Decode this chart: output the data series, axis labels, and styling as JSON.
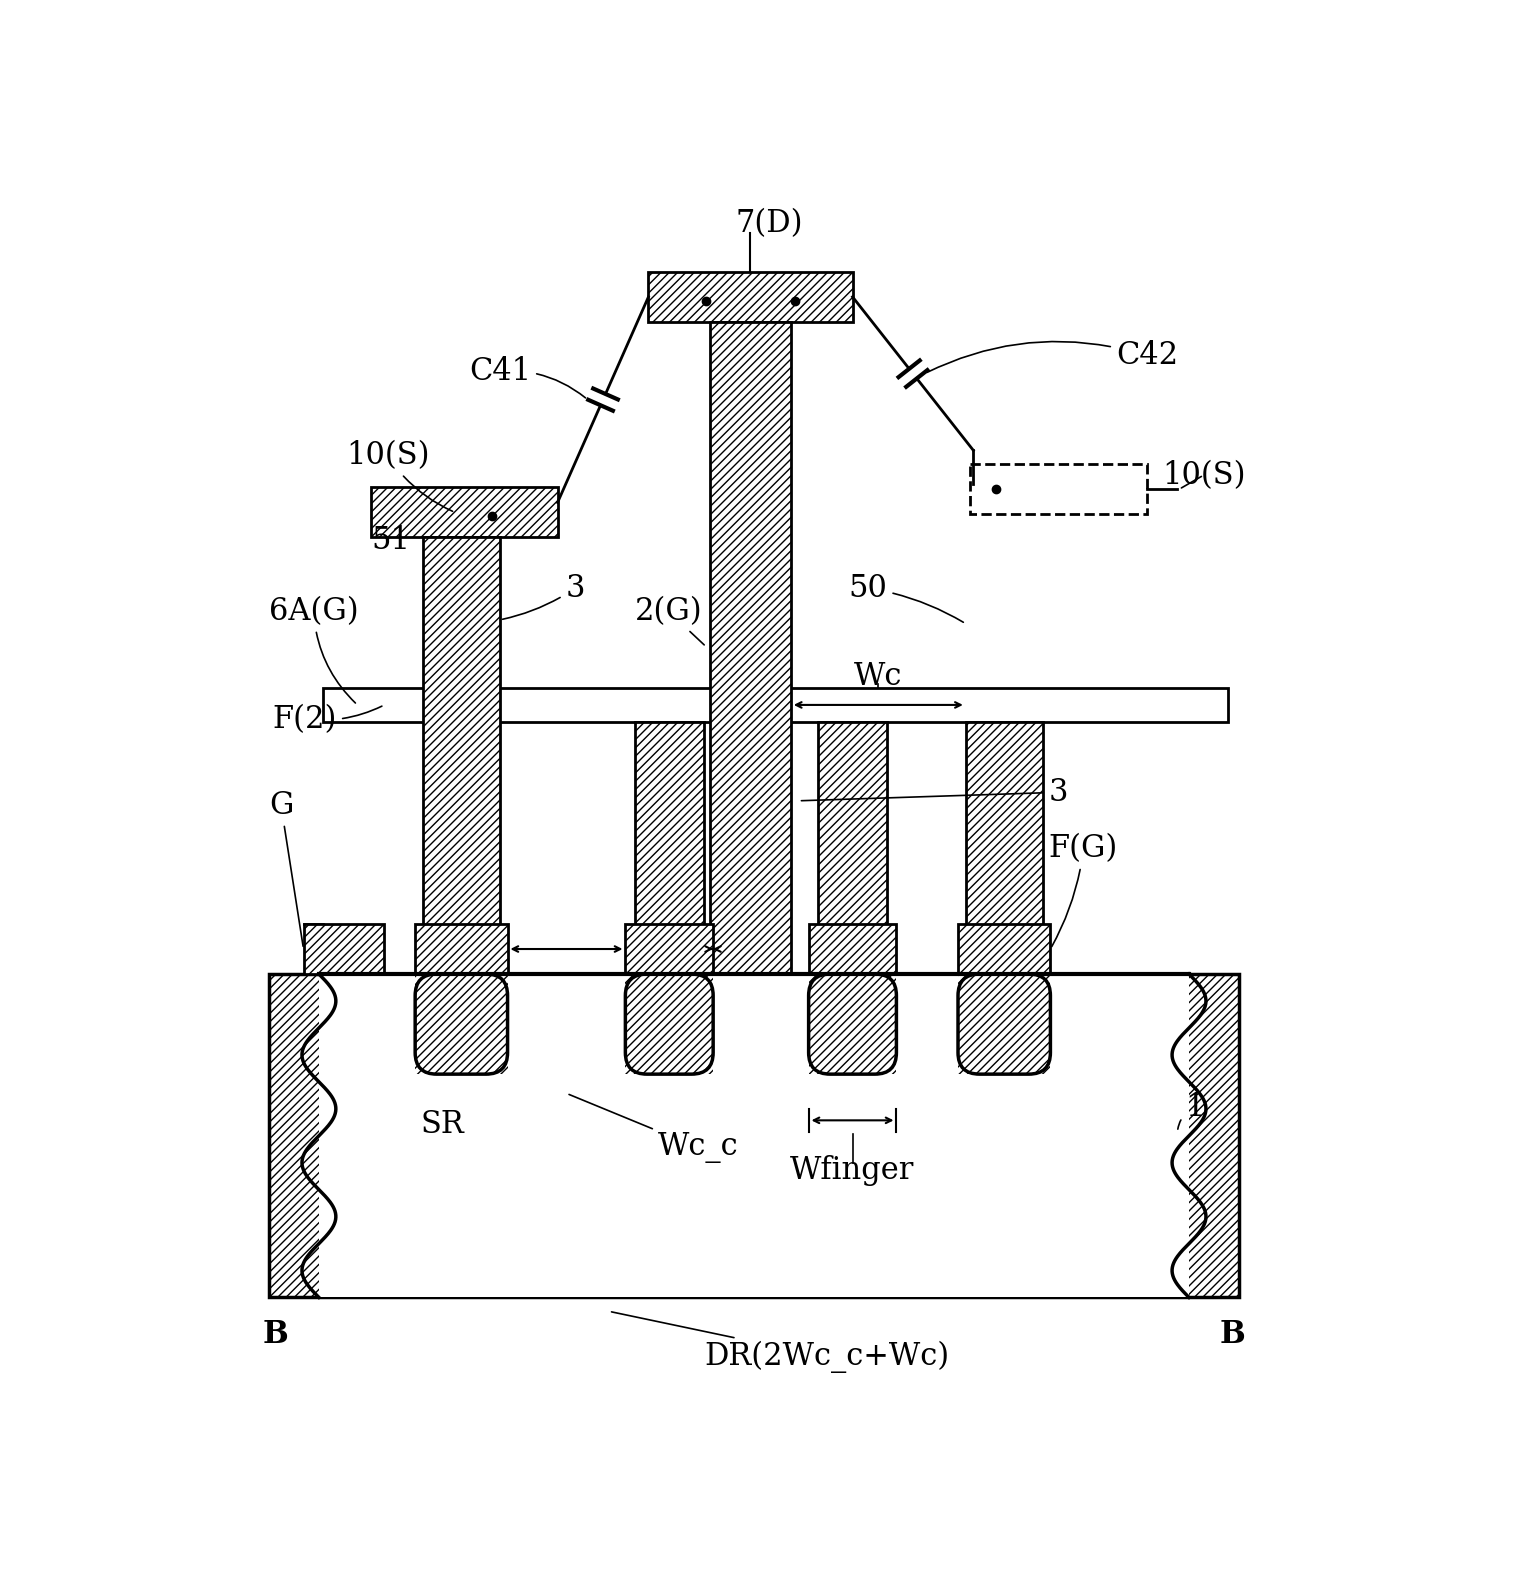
{
  "bg_color": "#ffffff",
  "fig_width": 15.35,
  "fig_height": 15.72,
  "labels": {
    "7D": "7(D)",
    "C41": "C41",
    "C42": "C42",
    "10S_left": "10(S)",
    "10S_right": "10(S)",
    "51": "51",
    "6AG": "6A(G)",
    "3_left": "3",
    "3_right": "3",
    "2G": "2(G)",
    "50": "50",
    "Wc": "Wc",
    "F2": "F(2)",
    "G": "G",
    "FG": "F(G)",
    "SR": "SR",
    "Wc_c": "Wc_c",
    "Wfinger": "Wfinger",
    "1": "1",
    "B_left": "B",
    "B_right": "B",
    "DR": "DR(2Wc_c+Wc)"
  }
}
